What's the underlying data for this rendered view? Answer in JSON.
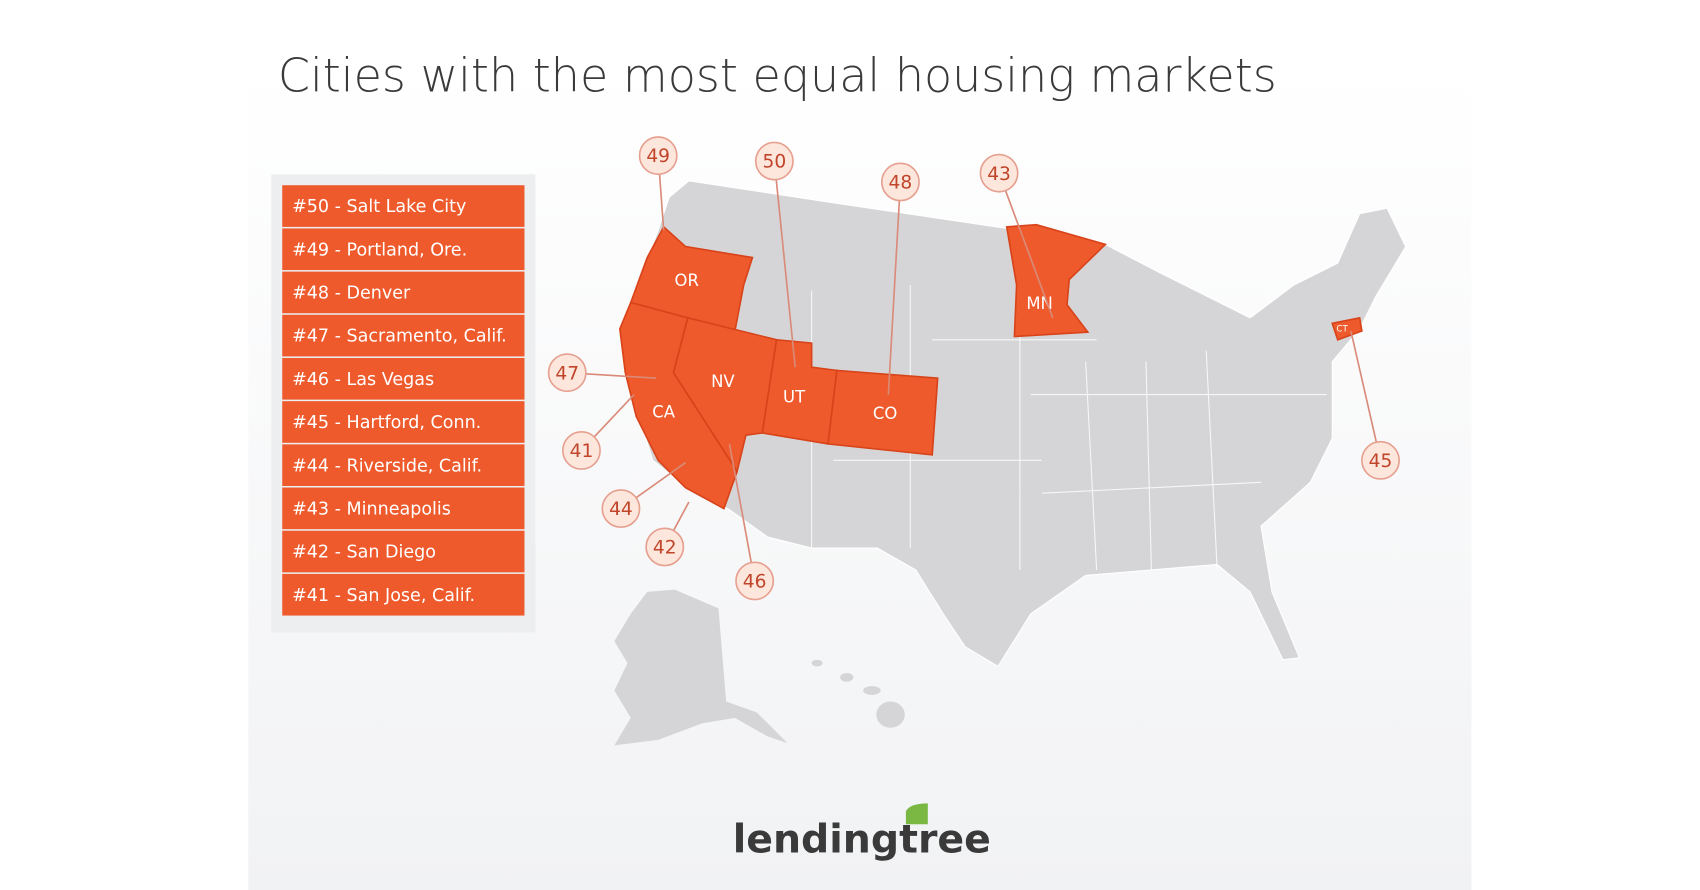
{
  "title": "Cities with the most equal housing markets",
  "rankings": [
    "#50 - Salt Lake City",
    "#49 - Portland, Ore.",
    "#48 - Denver",
    "#47 - Sacramento, Calif.",
    "#46 - Las Vegas",
    "#45 - Hartford, Conn.",
    "#44 - Riverside, Calif.",
    "#43 - Minneapolis",
    "#42 - San Diego",
    "#41 - San Jose, Calif."
  ],
  "state_labels": [
    "OR",
    "CA",
    "NV",
    "UT",
    "CO",
    "MN",
    "CT"
  ],
  "pins": [
    49,
    50,
    48,
    43,
    47,
    41,
    44,
    42,
    46,
    45
  ],
  "logo": "lendingtree"
}
